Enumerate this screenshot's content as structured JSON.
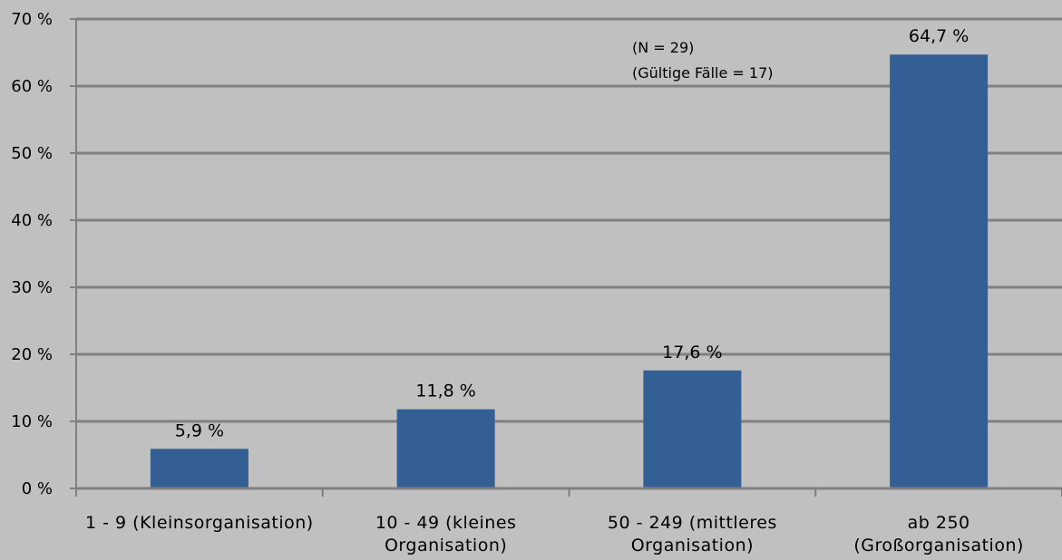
{
  "chart_data": {
    "type": "bar",
    "categories": [
      [
        "1 - 9 (Kleinsorganisation)"
      ],
      [
        "10 - 49 (kleines",
        "Organisation)"
      ],
      [
        "50 - 249 (mittleres",
        "Organisation)"
      ],
      [
        "ab 250",
        "(Großorganisation)"
      ]
    ],
    "values": [
      5.9,
      11.8,
      17.6,
      64.7
    ],
    "data_labels": [
      "5,9 %",
      "11,8 %",
      "17,6 %",
      "64,7 %"
    ],
    "ylim": [
      0,
      70
    ],
    "yticks": [
      0,
      10,
      20,
      30,
      40,
      50,
      60,
      70
    ],
    "ytick_labels": [
      "0 %",
      "10 %",
      "20 %",
      "30 %",
      "40 %",
      "50 %",
      "60 %",
      "70 %"
    ],
    "grid": true,
    "annotation": [
      "(N = 29)",
      "(Gültige Fälle = 17)"
    ],
    "colors": {
      "background": "#c0c0c0",
      "bar": "#335f94",
      "grid": "#808080"
    }
  }
}
